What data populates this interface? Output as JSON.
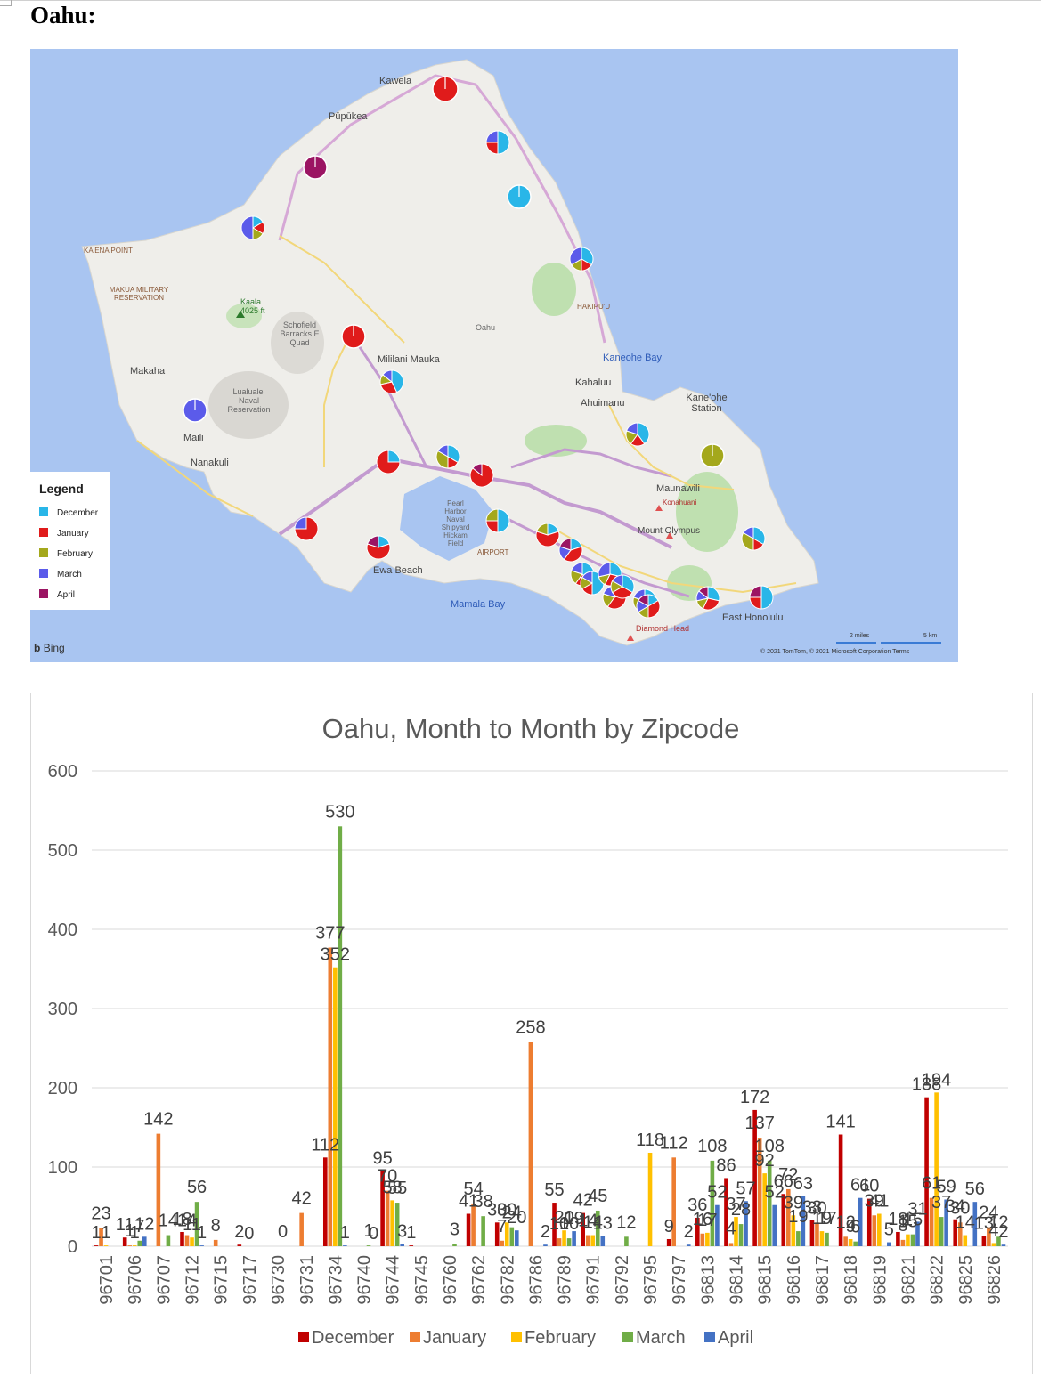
{
  "page": {
    "heading": "Oahu:"
  },
  "map": {
    "place_labels": [
      "Kawela",
      "Pūpūkea",
      "KA'ENA POINT",
      "MAKUA MILITARY RESERVATION",
      "Kaala 4025 ft",
      "Schofield Barracks E Quad",
      "Oahu",
      "Mililani Mauka",
      "Makaha",
      "Lualualei Naval Reservation",
      "Maili",
      "Nanakuli",
      "Kaneohe Bay",
      "Kahaluu",
      "Ahuimanu",
      "Kane'ohe Station",
      "HAKIPU'U",
      "Maunawili",
      "Konahuani",
      "Mount Olympus",
      "Pearl Harbor Naval Shipyard Hickam Field",
      "AIRPORT",
      "Ewa Beach",
      "Mamala Bay",
      "Diamond Head",
      "East Honolulu"
    ],
    "legend": {
      "title": "Legend",
      "items": [
        {
          "label": "December",
          "color": "#29b6e8"
        },
        {
          "label": "January",
          "color": "#e01b1b"
        },
        {
          "label": "February",
          "color": "#a4a81c"
        },
        {
          "label": "March",
          "color": "#5b5bea"
        },
        {
          "label": "April",
          "color": "#9b1463"
        }
      ]
    },
    "attribution": "Bing",
    "copyright": "© 2021 TomTom, © 2021 Microsoft Corporation  Terms",
    "scale_labels": [
      "2 miles",
      "5 km"
    ],
    "pies": [
      {
        "values": [
          0,
          1,
          0,
          0,
          0
        ]
      },
      {
        "values": [
          2,
          1,
          0,
          1,
          0
        ]
      },
      {
        "values": [
          1,
          0,
          0,
          0,
          0
        ]
      },
      {
        "values": [
          0,
          0,
          0,
          0,
          1
        ]
      },
      {
        "values": [
          1,
          1,
          1,
          3,
          0
        ]
      },
      {
        "values": [
          2,
          1,
          1,
          2,
          0
        ]
      },
      {
        "values": [
          0,
          1,
          0,
          0,
          0
        ]
      },
      {
        "values": [
          3,
          2,
          1,
          1,
          0
        ]
      },
      {
        "values": [
          0,
          0,
          0,
          1,
          0
        ]
      },
      {
        "values": [
          1,
          3,
          0,
          0,
          0
        ]
      },
      {
        "values": [
          2,
          1,
          2,
          1,
          0
        ]
      },
      {
        "values": [
          0,
          6,
          0,
          0,
          1
        ]
      },
      {
        "values": [
          0,
          3,
          0,
          1,
          0
        ]
      },
      {
        "values": [
          1,
          3,
          0,
          0,
          1
        ]
      },
      {
        "values": [
          2,
          1,
          1,
          0,
          0
        ]
      },
      {
        "values": [
          1,
          3,
          1,
          0,
          0
        ]
      },
      {
        "values": [
          2,
          1,
          1,
          1,
          0
        ]
      },
      {
        "values": [
          0,
          0,
          1,
          0,
          0
        ]
      },
      {
        "values": [
          2,
          1,
          2,
          1,
          0
        ]
      },
      {
        "values": [
          1,
          2,
          0,
          1,
          1
        ]
      },
      {
        "values": [
          2,
          1,
          1,
          1,
          0
        ]
      },
      {
        "values": [
          3,
          1,
          1,
          1,
          0
        ]
      },
      {
        "values": [
          2,
          2,
          1,
          2,
          0
        ]
      },
      {
        "values": [
          1,
          2,
          1,
          1,
          0
        ]
      },
      {
        "values": [
          1,
          2,
          1,
          1,
          0
        ]
      },
      {
        "values": [
          2,
          2,
          1,
          1,
          1
        ]
      },
      {
        "values": [
          2,
          1,
          0,
          0,
          1
        ]
      },
      {
        "values": [
          2,
          2,
          1,
          1,
          0
        ]
      },
      {
        "values": [
          1,
          2,
          1,
          1,
          1
        ]
      }
    ]
  },
  "chart_data": {
    "type": "bar",
    "title": "Oahu, Month to Month by Zipcode",
    "xlabel": "",
    "ylabel": "",
    "ylim": [
      0,
      600
    ],
    "yticks": [
      0,
      100,
      200,
      300,
      400,
      500,
      600
    ],
    "grid": true,
    "legend_position": "bottom",
    "categories": [
      "96701",
      "96706",
      "96707",
      "96712",
      "96715",
      "96717",
      "96730",
      "96731",
      "96734",
      "96740",
      "96744",
      "96745",
      "96760",
      "96762",
      "96782",
      "96786",
      "96789",
      "96791",
      "96792",
      "96795",
      "96797",
      "96813",
      "96814",
      "96815",
      "96816",
      "96817",
      "96818",
      "96819",
      "96821",
      "96822",
      "96825",
      "96826"
    ],
    "series": [
      {
        "name": "December",
        "color": "#c00000",
        "values": [
          1,
          11,
          null,
          18,
          null,
          2,
          null,
          null,
          112,
          null,
          95,
          1,
          null,
          41,
          30,
          null,
          55,
          42,
          null,
          null,
          9,
          36,
          86,
          172,
          66,
          33,
          141,
          60,
          18,
          188,
          34,
          13
        ]
      },
      {
        "name": "January",
        "color": "#ed7d31",
        "values": [
          23,
          1,
          142,
          14,
          8,
          null,
          null,
          42,
          377,
          null,
          70,
          null,
          null,
          54,
          7,
          258,
          10,
          14,
          null,
          null,
          112,
          16,
          4,
          137,
          72,
          30,
          12,
          39,
          8,
          61,
          30,
          24
        ]
      },
      {
        "name": "February",
        "color": "#ffc000",
        "values": [
          1,
          1,
          null,
          11,
          null,
          0,
          null,
          null,
          352,
          null,
          58,
          null,
          null,
          null,
          30,
          null,
          20,
          14,
          null,
          118,
          null,
          17,
          37,
          92,
          39,
          19,
          9,
          41,
          15,
          194,
          14,
          4
        ]
      },
      {
        "name": "March",
        "color": "#70ad47",
        "values": [
          null,
          7,
          14,
          56,
          null,
          null,
          0,
          null,
          530,
          1,
          55,
          null,
          3,
          38,
          24,
          null,
          10,
          45,
          12,
          null,
          null,
          108,
          28,
          108,
          19,
          17,
          6,
          null,
          15,
          37,
          null,
          12
        ]
      },
      {
        "name": "April",
        "color": "#4472c4",
        "values": [
          null,
          12,
          null,
          1,
          null,
          null,
          null,
          null,
          1,
          0,
          3,
          null,
          null,
          null,
          20,
          2,
          19,
          13,
          null,
          null,
          2,
          52,
          57,
          52,
          63,
          null,
          61,
          5,
          31,
          59,
          56,
          2
        ]
      }
    ]
  }
}
